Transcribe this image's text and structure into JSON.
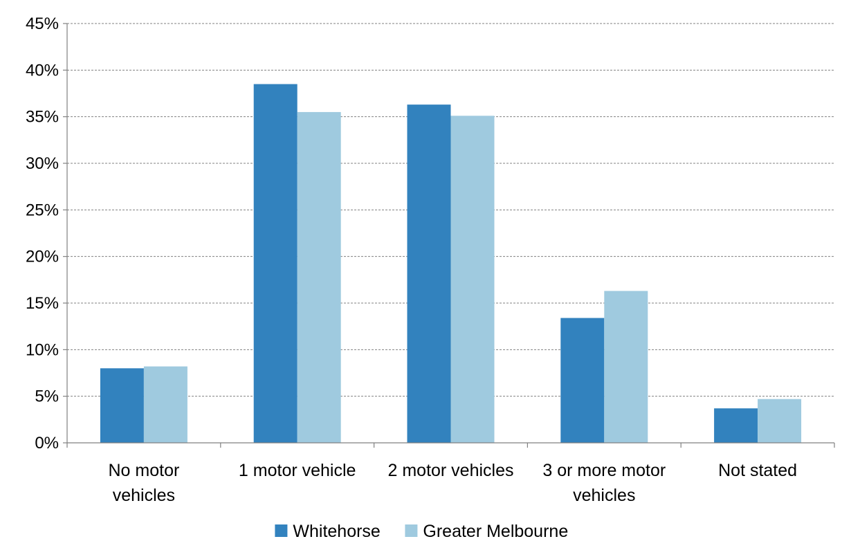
{
  "chart_data": {
    "type": "bar",
    "title": "",
    "xlabel": "",
    "ylabel": "",
    "categories": [
      [
        "No motor",
        "vehicles"
      ],
      [
        "1 motor vehicle"
      ],
      [
        "2 motor vehicles"
      ],
      [
        "3 or more motor",
        "vehicles"
      ],
      [
        "Not stated"
      ]
    ],
    "series": [
      {
        "name": "Whitehorse",
        "color": "#3282BE",
        "values": [
          8.0,
          38.5,
          36.3,
          13.4,
          3.7
        ]
      },
      {
        "name": "Greater Melbourne",
        "color": "#9FCADF",
        "values": [
          8.2,
          35.5,
          35.1,
          16.3,
          4.7
        ]
      }
    ],
    "ylim": [
      0,
      45
    ],
    "yticks": [
      0,
      5,
      10,
      15,
      20,
      25,
      30,
      35,
      40,
      45
    ],
    "ytick_labels": [
      "0%",
      "5%",
      "10%",
      "15%",
      "20%",
      "25%",
      "30%",
      "35%",
      "40%",
      "45%"
    ],
    "grid": true,
    "legend_position": "bottom"
  }
}
